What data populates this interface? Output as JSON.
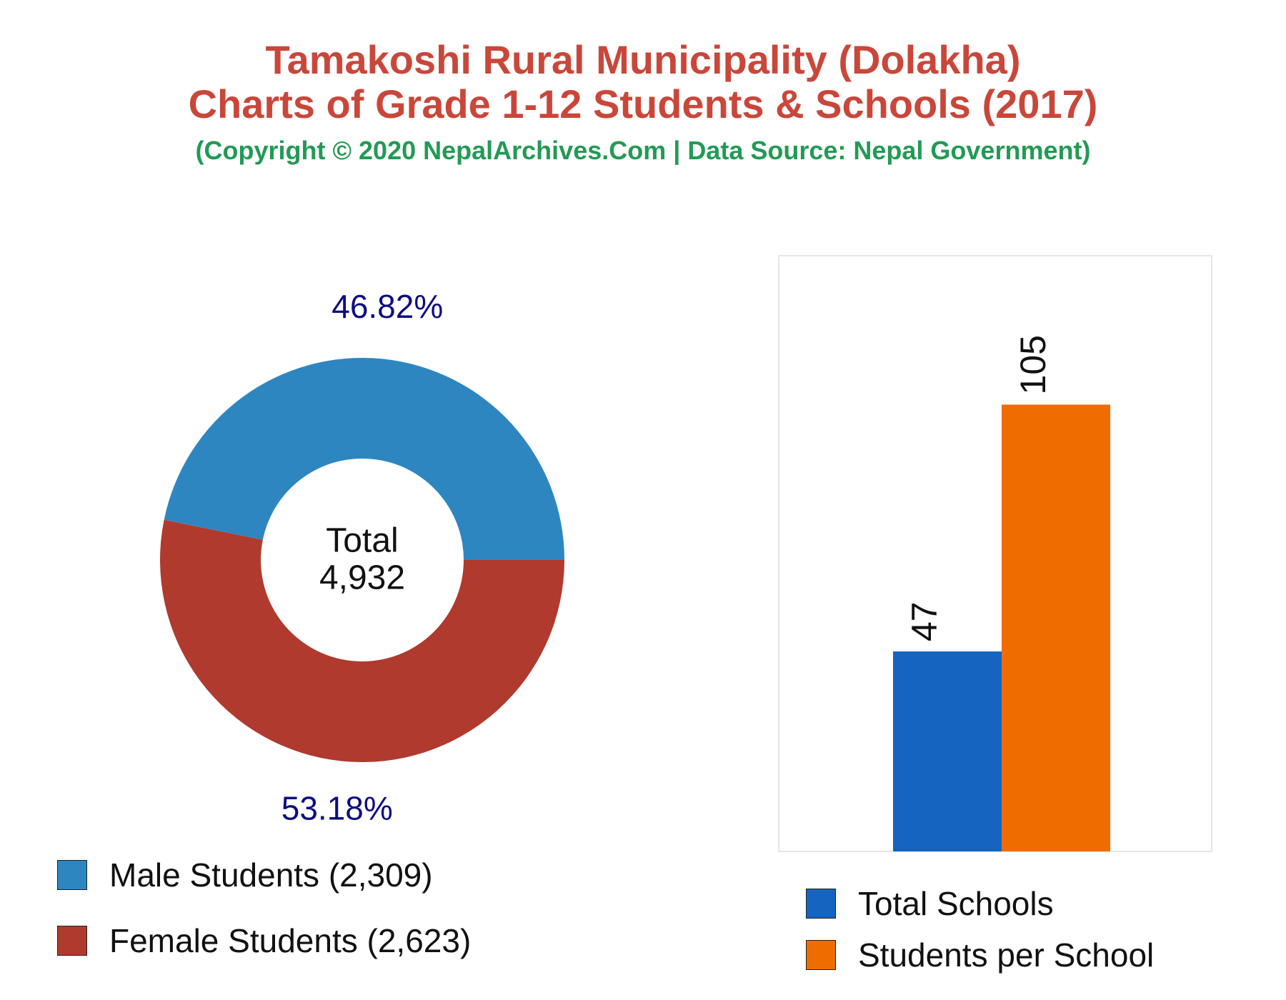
{
  "header": {
    "title_line1": "Tamakoshi Rural Municipality (Dolakha)",
    "title_line2": "Charts of Grade 1-12 Students & Schools (2017)",
    "copyright": "(Copyright © 2020 NepalArchives.Com | Data Source: Nepal Government)"
  },
  "colors": {
    "title": "#c9473a",
    "copyright": "#229a55",
    "male": "#2e86c1",
    "female": "#b03a2e",
    "schools": "#1565c0",
    "per_school": "#ef6c00",
    "percent_label": "#0d0d80"
  },
  "chart_data": [
    {
      "type": "pie",
      "donut": true,
      "center_label": "Total",
      "center_value": "4,932",
      "slices": [
        {
          "name": "Male Students (2,309)",
          "value": 2309,
          "percent": "46.82%",
          "color": "#2e86c1"
        },
        {
          "name": "Female Students (2,623)",
          "value": 2623,
          "percent": "53.18%",
          "color": "#b03a2e"
        }
      ],
      "legend_position": "bottom-left"
    },
    {
      "type": "bar",
      "categories": [
        "Total Schools",
        "Students per School"
      ],
      "values": [
        47,
        105
      ],
      "labels": [
        "47",
        "105"
      ],
      "colors": [
        "#1565c0",
        "#ef6c00"
      ],
      "ylim": [
        0,
        140
      ],
      "grid": false,
      "legend_position": "bottom"
    }
  ]
}
